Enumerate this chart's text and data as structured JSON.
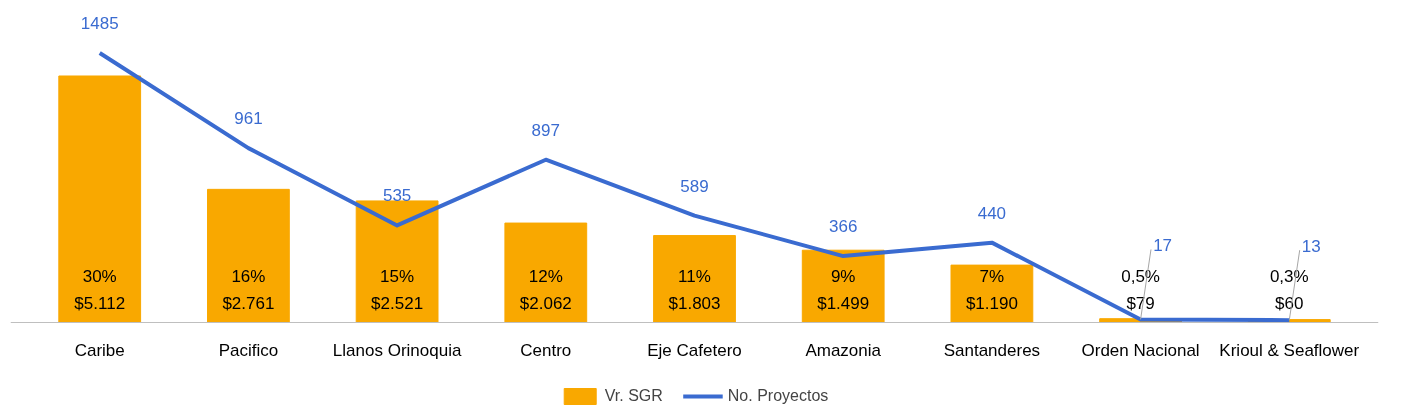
{
  "chart_data": {
    "type": "bar",
    "categories": [
      "Caribe",
      "Pacifico",
      "Llanos Orinoquia",
      "Centro",
      "Eje Cafetero",
      "Amazonia",
      "Santanderes",
      "Orden Nacional",
      "Krioul & Seaflower"
    ],
    "series": [
      {
        "name": "Vr. SGR",
        "color": "#f9a800",
        "values": [
          5112,
          2761,
          2521,
          2062,
          1803,
          1499,
          1190,
          79,
          60
        ],
        "value_labels": [
          "30%\n$5.112",
          "16%\n$2.761",
          "15%\n$2.521",
          "12%\n$2.062",
          "11%\n$1.803",
          "9%\n$1.499",
          "7%\n$1.190",
          "0,5%\n$79",
          "0,3%\n$60"
        ]
      },
      {
        "name": "No. Proyectos",
        "type": "line",
        "axis": "y2",
        "color": "#3a6bd0",
        "values": [
          1485,
          961,
          535,
          897,
          589,
          366,
          440,
          17,
          13
        ],
        "value_labels": [
          "1485",
          "961",
          "535",
          "897",
          "589",
          "366",
          "440",
          "17",
          "13"
        ]
      }
    ],
    "tick_labels": "x",
    "grid": false,
    "legend": "bottom"
  }
}
